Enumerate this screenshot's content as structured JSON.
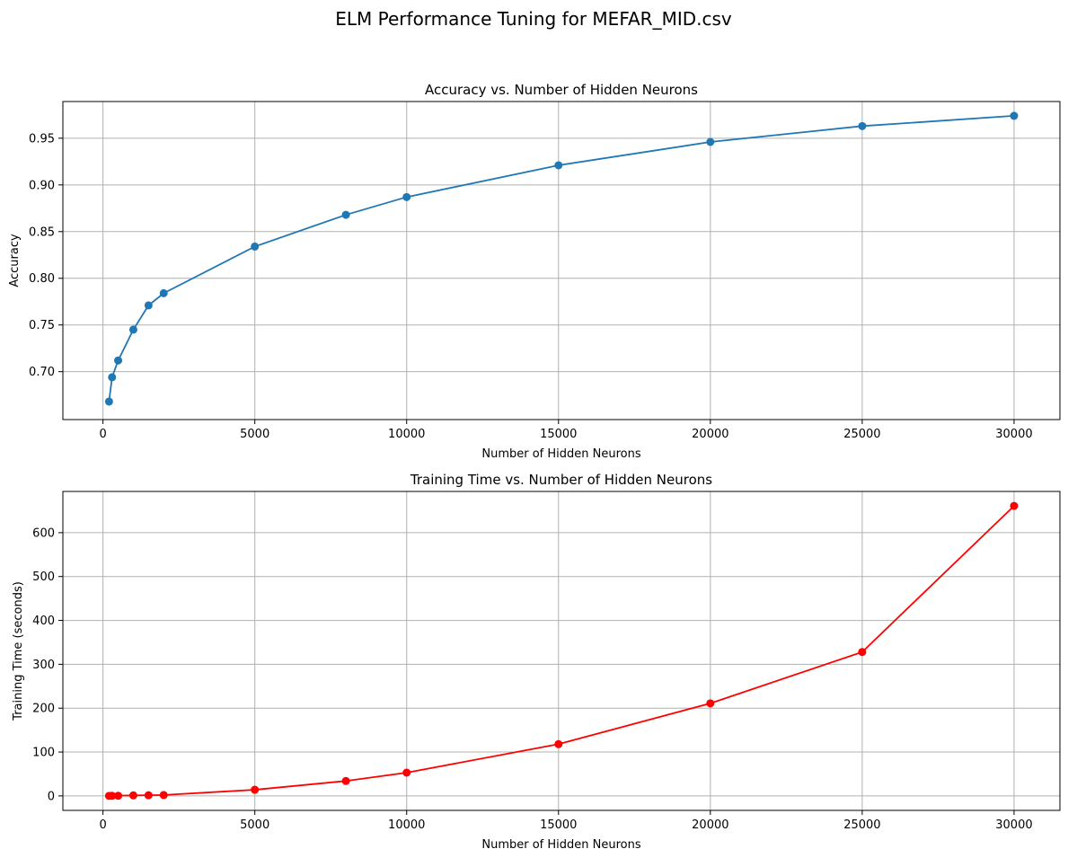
{
  "figure": {
    "suptitle": "ELM Performance Tuning for MEFAR_MID.csv"
  },
  "chart_data": [
    {
      "type": "line",
      "title": "Accuracy vs. Number of Hidden Neurons",
      "xlabel": "Number of Hidden Neurons",
      "ylabel": "Accuracy",
      "x": [
        200,
        300,
        500,
        1000,
        1500,
        2000,
        5000,
        8000,
        10000,
        15000,
        20000,
        25000,
        30000
      ],
      "series": [
        {
          "values": [
            0.668,
            0.694,
            0.712,
            0.745,
            0.771,
            0.784,
            0.834,
            0.868,
            0.887,
            0.921,
            0.946,
            0.963,
            0.974
          ],
          "color": "#1f77b4",
          "marker": "circle"
        }
      ],
      "xlim": [
        -1320,
        31510
      ],
      "ylim": [
        0.6487,
        0.9893
      ],
      "xticks": [
        "0",
        "5000",
        "10000",
        "15000",
        "20000",
        "25000",
        "30000"
      ],
      "xtick_values": [
        0,
        5000,
        10000,
        15000,
        20000,
        25000,
        30000
      ],
      "yticks": [
        "0.70",
        "0.75",
        "0.80",
        "0.85",
        "0.90",
        "0.95"
      ],
      "ytick_values": [
        0.7,
        0.75,
        0.8,
        0.85,
        0.9,
        0.95
      ],
      "grid": true
    },
    {
      "type": "line",
      "title": "Training Time vs. Number of Hidden Neurons",
      "xlabel": "Number of Hidden Neurons",
      "ylabel": "Training Time (seconds)",
      "x": [
        200,
        300,
        500,
        1000,
        1500,
        2000,
        5000,
        8000,
        10000,
        15000,
        20000,
        25000,
        30000
      ],
      "series": [
        {
          "values": [
            0.1,
            0.2,
            0.4,
            1.2,
            1.5,
            2.0,
            14,
            34,
            53,
            118,
            211,
            328,
            661
          ],
          "color": "#ff0000",
          "marker": "circle"
        }
      ],
      "xlim": [
        -1320,
        31510
      ],
      "ylim": [
        -33,
        694
      ],
      "xticks": [
        "0",
        "5000",
        "10000",
        "15000",
        "20000",
        "25000",
        "30000"
      ],
      "xtick_values": [
        0,
        5000,
        10000,
        15000,
        20000,
        25000,
        30000
      ],
      "yticks": [
        "0",
        "100",
        "200",
        "300",
        "400",
        "500",
        "600"
      ],
      "ytick_values": [
        0,
        100,
        200,
        300,
        400,
        500,
        600
      ],
      "grid": true
    }
  ]
}
